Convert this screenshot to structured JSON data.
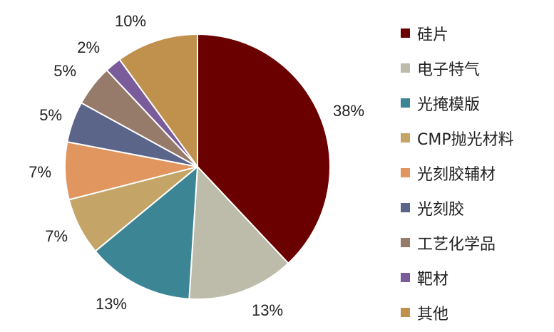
{
  "chart_data": {
    "type": "pie",
    "categories": [
      "硅片",
      "电子特气",
      "光掩模版",
      "CMP抛光材料",
      "光刻胶辅材",
      "光刻胶",
      "工艺化学品",
      "靶材",
      "其他"
    ],
    "values": [
      38,
      13,
      13,
      7,
      7,
      5,
      5,
      2,
      10
    ],
    "labels": [
      "38%",
      "13%",
      "13%",
      "7%",
      "7%",
      "5%",
      "5%",
      "2%",
      "10%"
    ],
    "colors": [
      "#6b0000",
      "#bdbba9",
      "#3c8595",
      "#c4a467",
      "#e1955f",
      "#5b6489",
      "#967b6a",
      "#7a5c9a",
      "#c0914d"
    ],
    "legend_position": "right"
  }
}
